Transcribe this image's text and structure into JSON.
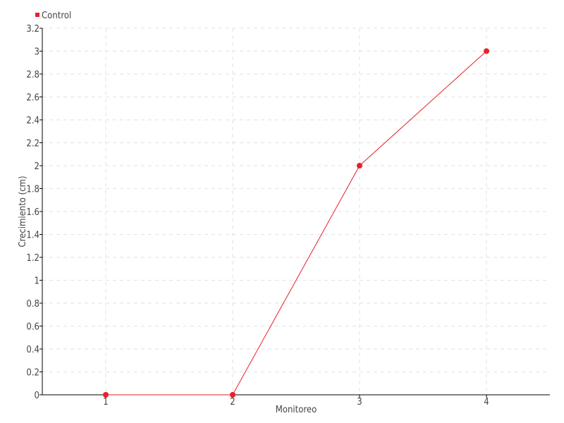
{
  "chart_data": {
    "type": "line",
    "title": "",
    "xlabel": "Monitoreo",
    "ylabel": "Crecimiento (cm)",
    "categories": [
      "1",
      "2",
      "3",
      "4"
    ],
    "ylim": [
      0,
      3.2
    ],
    "yticks": [
      "0",
      "0.2",
      "0.4",
      "0.6",
      "0.8",
      "1",
      "1.2",
      "1.4",
      "1.6",
      "1.8",
      "2",
      "2.2",
      "2.4",
      "2.6",
      "2.8",
      "3",
      "3.2"
    ],
    "grid": true,
    "legend": "top-left",
    "series": [
      {
        "name": "Control",
        "values": [
          0,
          0,
          2,
          3
        ],
        "color": "#e8202a"
      }
    ]
  }
}
